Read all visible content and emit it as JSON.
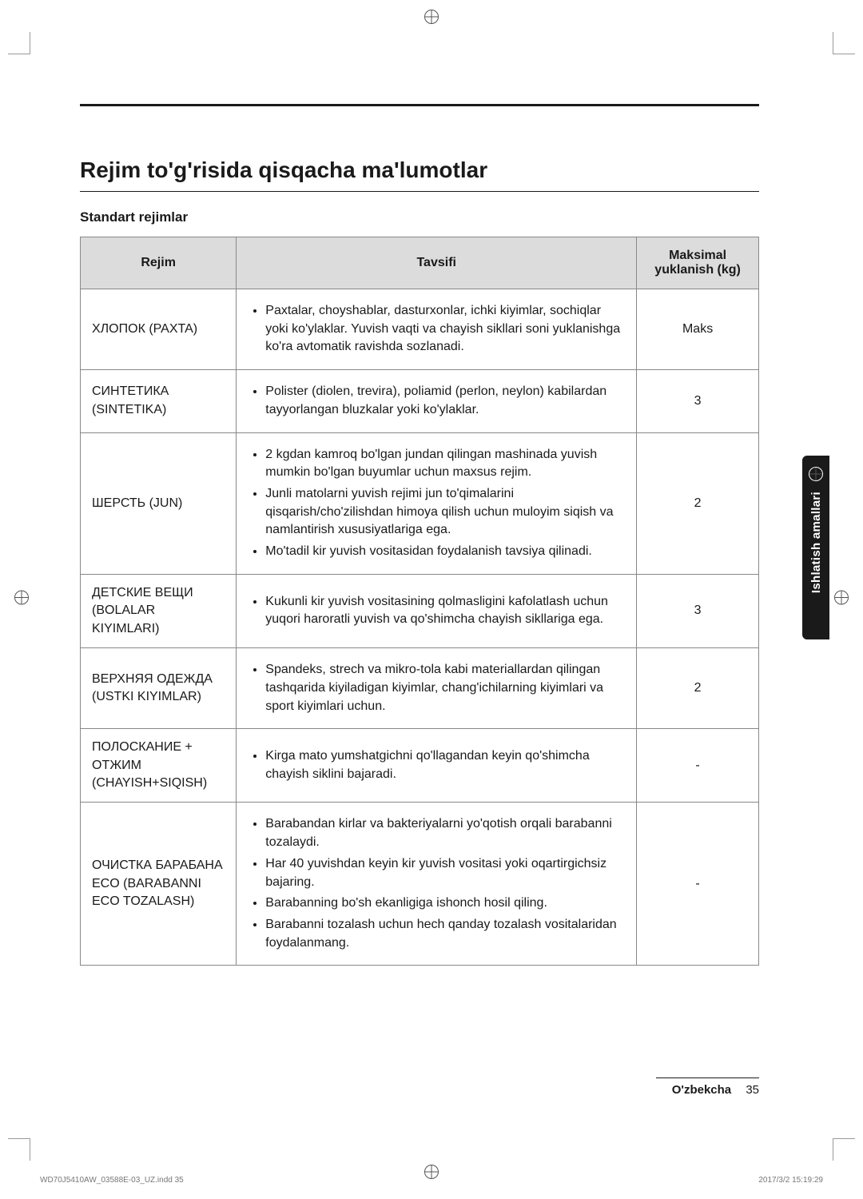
{
  "heading": "Rejim to'g'risida qisqacha ma'lumotlar",
  "subheading": "Standart rejimlar",
  "columns": {
    "rejim": "Rejim",
    "tavsifi": "Tavsifi",
    "maks": "Maksimal yuklanish (kg)"
  },
  "rows": [
    {
      "rejim": "ХЛОПОК (PAXTA)",
      "items": [
        "Paxtalar, choyshablar, dasturxonlar, ichki kiyimlar, sochiqlar yoki ko'ylaklar. Yuvish vaqti va chayish sikllari soni yuklanishga ko'ra avtomatik ravishda sozlanadi."
      ],
      "maks": "Maks"
    },
    {
      "rejim": "СИНТЕТИКА (SINTETIKA)",
      "items": [
        "Polister (diolen, trevira), poliamid (perlon, neylon) kabilardan tayyorlangan bluzkalar yoki ko'ylaklar."
      ],
      "maks": "3"
    },
    {
      "rejim": "ШЕРСТЬ (JUN)",
      "items": [
        "2 kgdan kamroq bo'lgan jundan qilingan mashinada yuvish mumkin bo'lgan buyumlar uchun maxsus rejim.",
        "Junli matolarni yuvish rejimi jun to'qimalarini qisqarish/cho'zilishdan himoya qilish uchun muloyim siqish va namlantirish xususiyatlariga ega.",
        "Mo'tadil kir yuvish vositasidan foydalanish tavsiya qilinadi."
      ],
      "maks": "2"
    },
    {
      "rejim": "ДЕТСКИЕ ВЕЩИ (BOLALAR KIYIMLARI)",
      "items": [
        "Kukunli kir yuvish vositasining qolmasligini kafolatlash uchun yuqori haroratli yuvish va qo'shimcha chayish sikllariga ega."
      ],
      "maks": "3"
    },
    {
      "rejim": "ВЕРХНЯЯ ОДЕЖДА (USTKI KIYIMLAR)",
      "items": [
        "Spandeks, strech va mikro-tola kabi materiallardan qilingan tashqarida kiyiladigan kiyimlar, chang'ichilarning kiyimlari va sport kiyimlari uchun."
      ],
      "maks": "2"
    },
    {
      "rejim": "ПОЛОСКАНИЕ + ОТЖИМ (CHAYISH+SIQISH)",
      "items": [
        "Kirga mato yumshatgichni qo'llagandan keyin qo'shimcha chayish siklini bajaradi."
      ],
      "maks": "-"
    },
    {
      "rejim": "ОЧИСТКА БАРАБАНА ECO (BARABANNI ECO TOZALASH)",
      "items": [
        "Barabandan kirlar va bakteriyalarni yo'qotish orqali barabanni tozalaydi.",
        "Har 40 yuvishdan keyin kir yuvish vositasi yoki oqartirgichsiz bajaring.",
        "Barabanning bo'sh ekanligiga ishonch hosil qiling.",
        "Barabanni tozalash uchun hech qanday tozalash vositalaridan foydalanmang."
      ],
      "maks": "-"
    }
  ],
  "side_tab": "Ishlatish amallari",
  "footer_lang": "O'zbekcha",
  "footer_page": "35",
  "print_left": "WD70J5410AW_03588E-03_UZ.indd   35",
  "print_right": "2017/3/2   15:19:29"
}
